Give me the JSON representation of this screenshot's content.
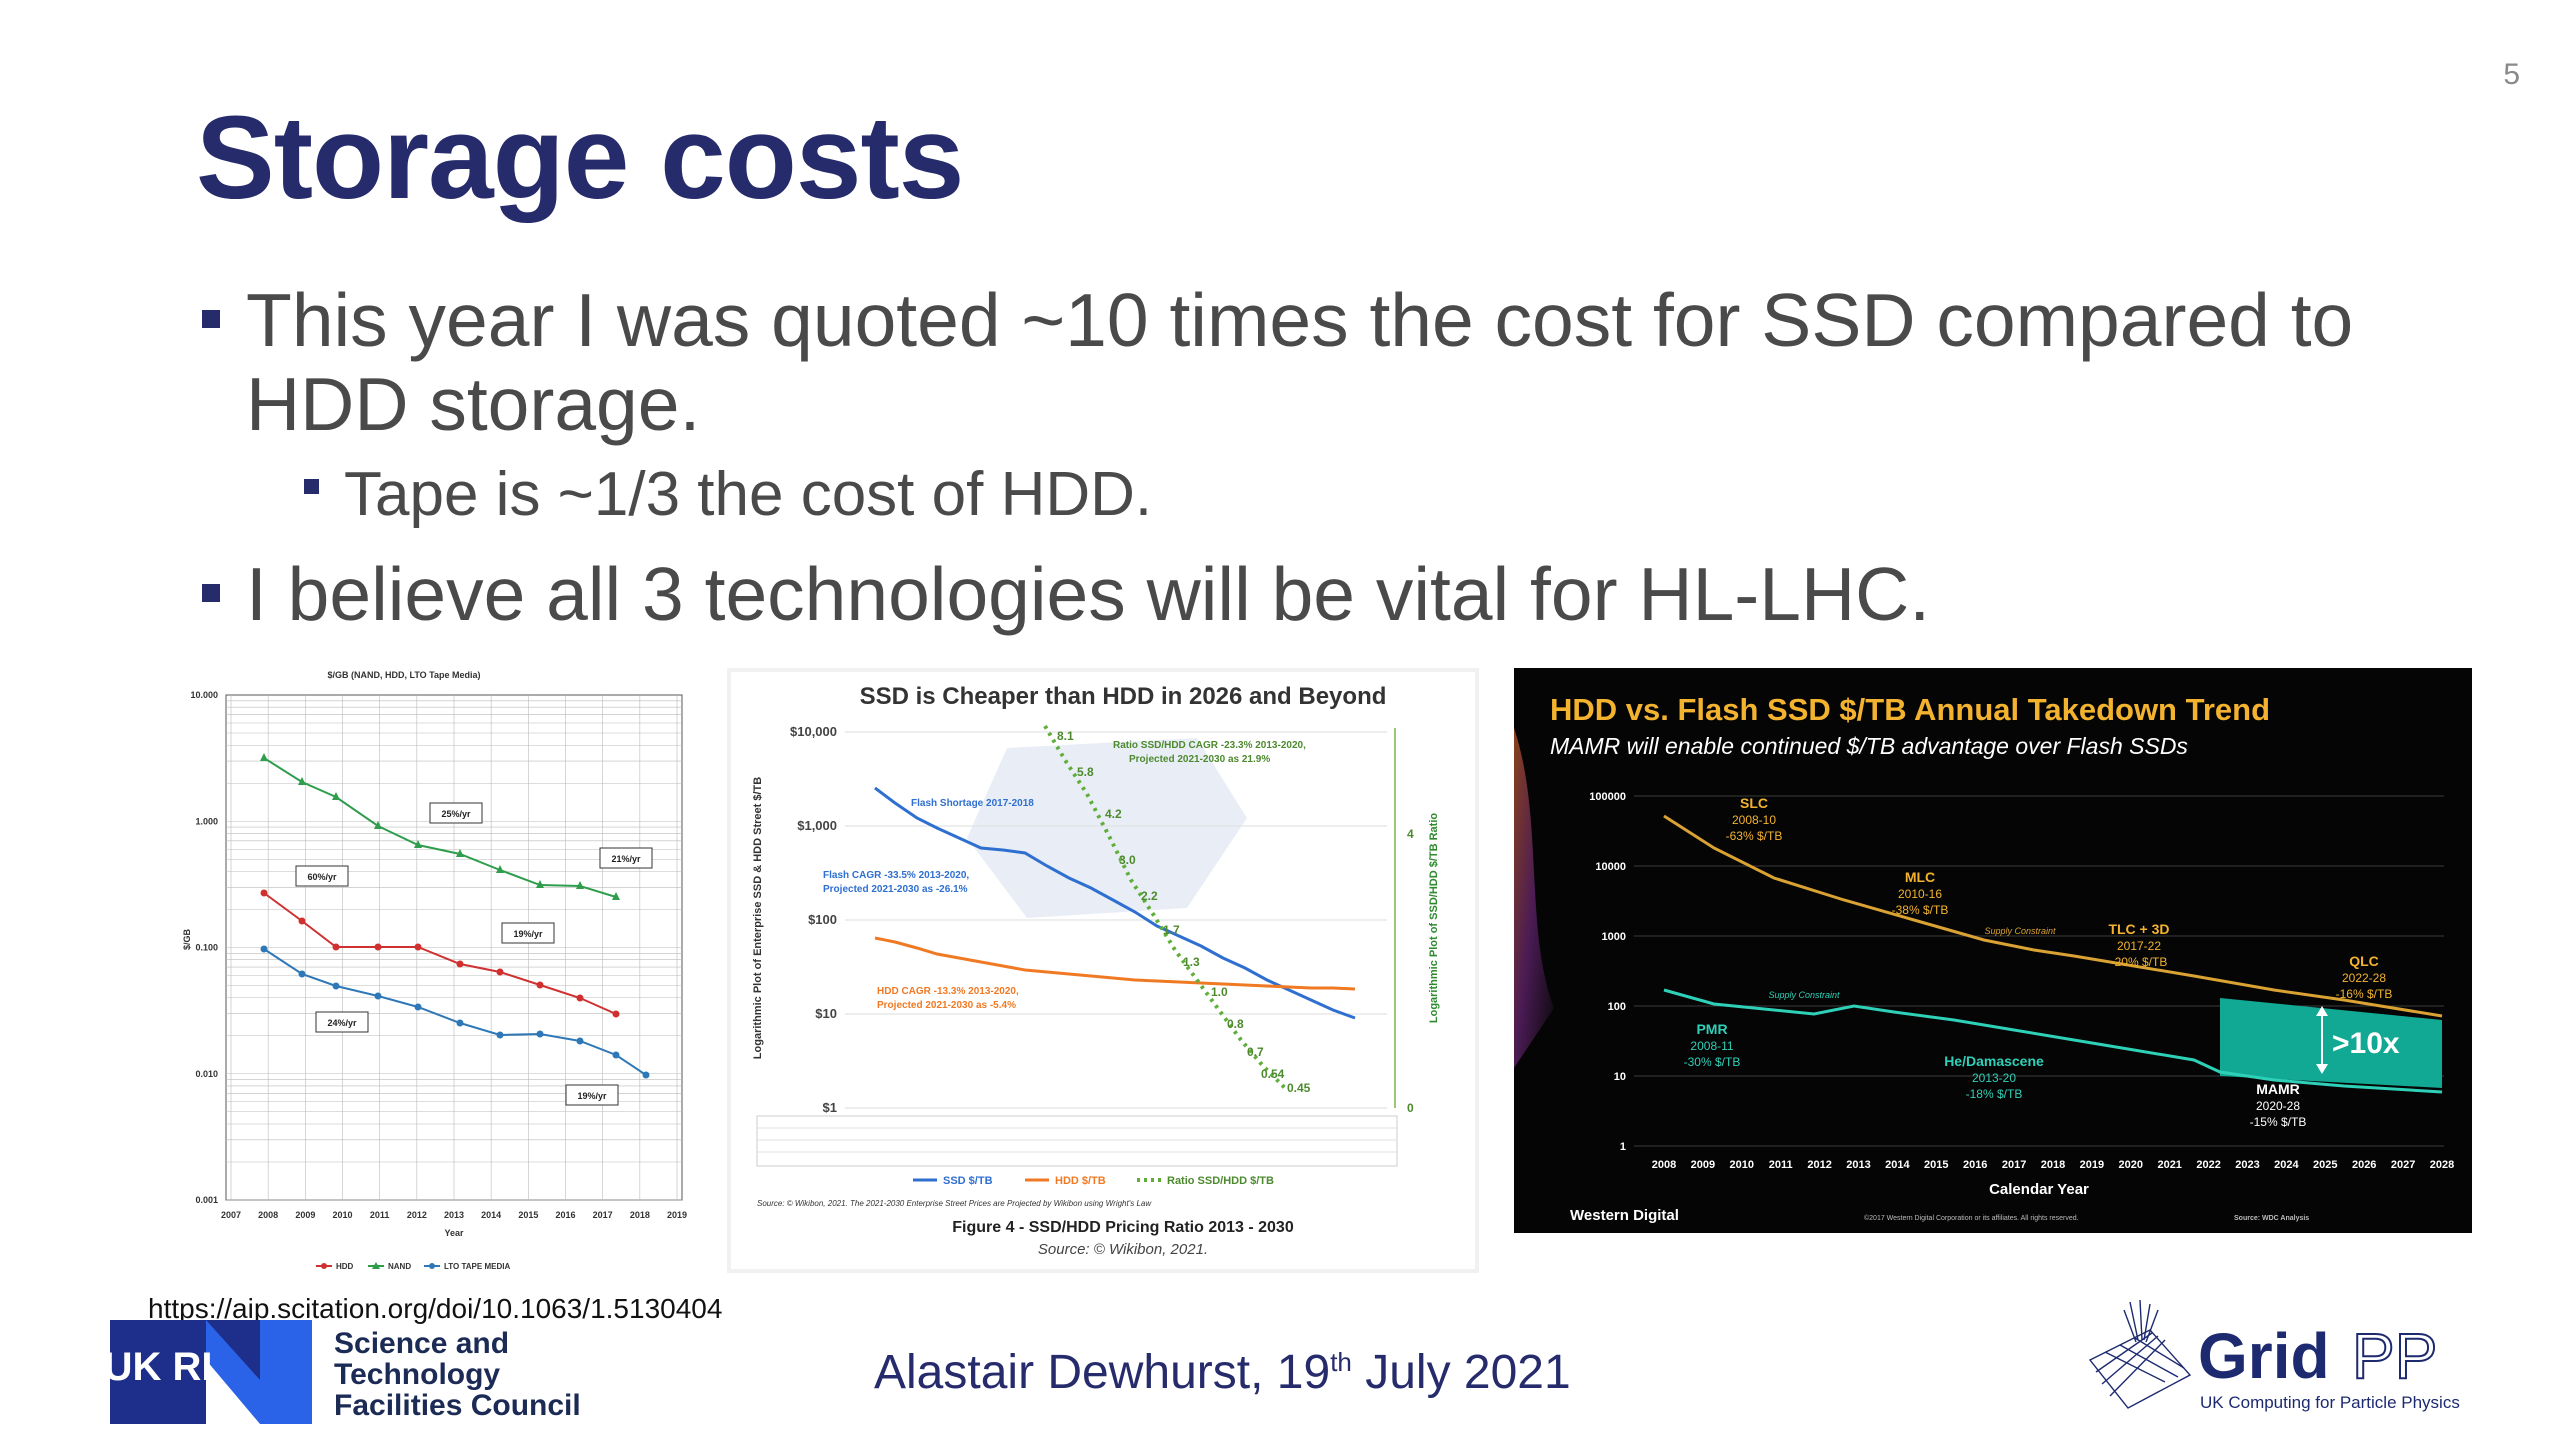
{
  "slide": {
    "number": "5",
    "title": "Storage costs",
    "bullets": [
      "This year I was quoted ~10 times the cost for SSD compared to",
      "HDD storage.",
      "Tape is ~1/3 the cost of HDD.",
      "I believe all 3 technologies will be vital for HL-LHC."
    ],
    "url": "https://aip.scitation.org/doi/10.1063/1.5130404",
    "presenter_prefix": "Alastair Dewhurst, 19",
    "presenter_sup": "th",
    "presenter_suffix": " July 2021"
  },
  "chart_left": {
    "title": "$/GB (NAND, HDD, LTO Tape Media)",
    "ylabel": "$/GB",
    "xlabel": "Year",
    "y_ticks": [
      "10.000",
      "1.000",
      "0.100",
      "0.010",
      "0.001"
    ],
    "x_ticks": [
      "2007",
      "2008",
      "2009",
      "2010",
      "2011",
      "2012",
      "2013",
      "2014",
      "2015",
      "2016",
      "2017",
      "2018",
      "2019"
    ],
    "annotations": [
      "25%/yr",
      "21%/yr",
      "60%/yr",
      "19%/yr",
      "24%/yr",
      "19%/yr"
    ],
    "legend": [
      "HDD",
      "NAND",
      "LTO TAPE MEDIA"
    ]
  },
  "chart_middle": {
    "title": "SSD is Cheaper than HDD in 2026 and Beyond",
    "ylabel": "Logarithmic Plot of Enterprise SSD & HDD Street $/TB",
    "y2label": "Logarithmic Plot of SSD/HDD $/TB Ratio",
    "y_ticks": [
      "$10,000",
      "$1,000",
      "$100",
      "$10",
      "$1"
    ],
    "annotations": {
      "ratio_cagr": "Ratio SSD/HDD CAGR -23.3% 2013-2020,",
      "ratio_proj": "Projected 2021-2030 as 21.9%",
      "flash_shortage": "Flash Shortage 2017-2018",
      "flash_cagr": "Flash CAGR -33.5% 2013-2020,",
      "flash_proj": "Projected 2021-2030 as -26.1%",
      "hdd_cagr": "HDD CAGR -13.3% 2013-2020,",
      "hdd_proj": "Projected 2021-2030 as -5.4%"
    },
    "ratio_labels": [
      "8.1",
      "5.8",
      "4.2",
      "3.0",
      "2.2",
      "1.7",
      "1.3",
      "1.0",
      "0.8",
      "0.7",
      "0.54",
      "0.45"
    ],
    "right_ticks": [
      "4",
      "0"
    ],
    "legend": [
      "SSD $/TB",
      "HDD $/TB",
      "Ratio SSD/HDD $/TB"
    ],
    "source_note": "Source: © Wikibon, 2021. The 2021-2030 Enterprise Street Prices are Projected by Wikibon using Wright's Law",
    "caption": "Figure 4 - SSD/HDD Pricing Ratio 2013 - 2030",
    "caption_source": "Source: © Wikibon, 2021."
  },
  "chart_right": {
    "title": "HDD vs. Flash SSD $/TB Annual Takedown Trend",
    "subtitle": "MAMR will enable continued $/TB advantage over Flash SSDs",
    "y_ticks": [
      "100000",
      "10000",
      "1000",
      "100",
      "10",
      "1"
    ],
    "x_ticks": [
      "2008",
      "2009",
      "2010",
      "2011",
      "2012",
      "2013",
      "2014",
      "2015",
      "2016",
      "2017",
      "2018",
      "2019",
      "2020",
      "2021",
      "2022",
      "2023",
      "2024",
      "2025",
      "2026",
      "2027",
      "2028"
    ],
    "xlabel": "Calendar Year",
    "labels": {
      "slc": [
        "SLC",
        "2008-10",
        "-63% $/TB"
      ],
      "mlc": [
        "MLC",
        "2010-16",
        "-38% $/TB"
      ],
      "tlc": [
        "TLC + 3D",
        "2017-22",
        "-20% $/TB"
      ],
      "qlc": [
        "QLC",
        "2022-28",
        "-16% $/TB"
      ],
      "pmr": [
        "PMR",
        "2008-11",
        "-30% $/TB"
      ],
      "he": [
        "He/Damascene",
        "2013-20",
        "-18% $/TB"
      ],
      "mamr": [
        "MAMR",
        "2020-28",
        "-15% $/TB"
      ],
      "supply1": "Supply Constraint",
      "supply2": "Supply Constraint",
      "advantage": ">10x"
    },
    "brand": "Western Digital",
    "source": "Source: WDC Analysis",
    "copyright": "©2017 Western Digital Corporation or its affiliates. All rights reserved.",
    "colors": {
      "flash": "#d9a233",
      "hdd": "#2fd0b8",
      "band": "#11a894"
    }
  },
  "logos": {
    "ukri_text": "UK RI",
    "stfc_lines": [
      "Science and",
      "Technology",
      "Facilities Council"
    ],
    "gridpp_grid": "Grid",
    "gridpp_pp": "PP",
    "gridpp_sub": "UK Computing for Particle Physics"
  }
}
